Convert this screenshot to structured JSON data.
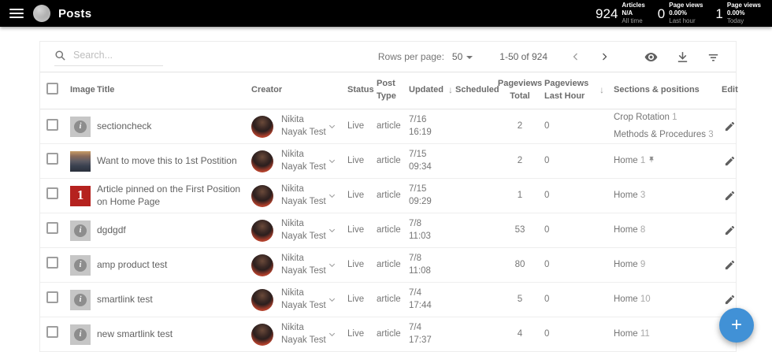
{
  "header": {
    "title": "Posts",
    "stats": [
      {
        "value": "924",
        "label": "Articles",
        "sub_value": "N/A",
        "sub_label": "All time"
      },
      {
        "value": "0",
        "label": "Page views",
        "sub_value": "0.00%",
        "sub_label": "Last hour"
      },
      {
        "value": "1",
        "label": "Page views",
        "sub_value": "0.00%",
        "sub_label": "Today"
      }
    ]
  },
  "toolbar": {
    "search_placeholder": "Search...",
    "rows_per_page_label": "Rows per page:",
    "rows_per_page_value": "50",
    "range_label": "1-50 of 924"
  },
  "table": {
    "columns": {
      "image": "Image",
      "title": "Title",
      "creator": "Creator",
      "status": "Status",
      "post_type": "Post Type",
      "updated": "Updated",
      "scheduled": "Scheduled",
      "pageviews_total": "Pageviews Total",
      "pageviews_last_hour": "Pageviews Last Hour",
      "sections": "Sections & positions",
      "edit": "Edit"
    },
    "sort_arrow": "↓",
    "rows": [
      {
        "thumb": {
          "type": "placeholder",
          "glyph": "i"
        },
        "title": "sectioncheck",
        "creator_line1": "Nikita",
        "creator_line2": "Nayak Test",
        "status": "Live",
        "post_type": "article",
        "updated_line1": "7/16",
        "updated_line2": "16:19",
        "scheduled": "",
        "pv_total": "2",
        "pv_hour": "0",
        "sections": [
          {
            "name": "Crop Rotation",
            "position": "1",
            "pinned": false
          },
          {
            "name": "Methods & Procedures",
            "position": "3",
            "pinned": false
          }
        ]
      },
      {
        "thumb": {
          "type": "photo",
          "glyph": ""
        },
        "title": "Want to move this to 1st Postition",
        "creator_line1": "Nikita",
        "creator_line2": "Nayak Test",
        "status": "Live",
        "post_type": "article",
        "updated_line1": "7/15",
        "updated_line2": "09:34",
        "scheduled": "",
        "pv_total": "2",
        "pv_hour": "0",
        "sections": [
          {
            "name": "Home",
            "position": "1",
            "pinned": true
          }
        ]
      },
      {
        "thumb": {
          "type": "number",
          "glyph": "1"
        },
        "title": "Article pinned on the First Position on Home Page",
        "creator_line1": "Nikita",
        "creator_line2": "Nayak Test",
        "status": "Live",
        "post_type": "article",
        "updated_line1": "7/15",
        "updated_line2": "09:29",
        "scheduled": "",
        "pv_total": "1",
        "pv_hour": "0",
        "sections": [
          {
            "name": "Home",
            "position": "3",
            "pinned": false
          }
        ]
      },
      {
        "thumb": {
          "type": "placeholder",
          "glyph": "i"
        },
        "title": "dgdgdf",
        "creator_line1": "Nikita",
        "creator_line2": "Nayak Test",
        "status": "Live",
        "post_type": "article",
        "updated_line1": "7/8",
        "updated_line2": "11:03",
        "scheduled": "",
        "pv_total": "53",
        "pv_hour": "0",
        "sections": [
          {
            "name": "Home",
            "position": "8",
            "pinned": false
          }
        ]
      },
      {
        "thumb": {
          "type": "placeholder",
          "glyph": "i"
        },
        "title": "amp product test",
        "creator_line1": "Nikita",
        "creator_line2": "Nayak Test",
        "status": "Live",
        "post_type": "article",
        "updated_line1": "7/8",
        "updated_line2": "11:08",
        "scheduled": "",
        "pv_total": "80",
        "pv_hour": "0",
        "sections": [
          {
            "name": "Home",
            "position": "9",
            "pinned": false
          }
        ]
      },
      {
        "thumb": {
          "type": "placeholder",
          "glyph": "i"
        },
        "title": "smartlink test",
        "creator_line1": "Nikita",
        "creator_line2": "Nayak Test",
        "status": "Live",
        "post_type": "article",
        "updated_line1": "7/4",
        "updated_line2": "17:44",
        "scheduled": "",
        "pv_total": "5",
        "pv_hour": "0",
        "sections": [
          {
            "name": "Home",
            "position": "10",
            "pinned": false
          }
        ]
      },
      {
        "thumb": {
          "type": "placeholder",
          "glyph": "i"
        },
        "title": "new smartlink test",
        "creator_line1": "Nikita",
        "creator_line2": "Nayak Test",
        "status": "Live",
        "post_type": "article",
        "updated_line1": "7/4",
        "updated_line2": "17:37",
        "scheduled": "",
        "pv_total": "4",
        "pv_hour": "0",
        "sections": [
          {
            "name": "Home",
            "position": "11",
            "pinned": false
          }
        ]
      }
    ]
  },
  "fab": {
    "label": "+"
  },
  "colors": {
    "accent_blue": "#4191d6",
    "header_bg": "#000000",
    "pinned_red": "#b5221f",
    "status_text": "#757575"
  }
}
